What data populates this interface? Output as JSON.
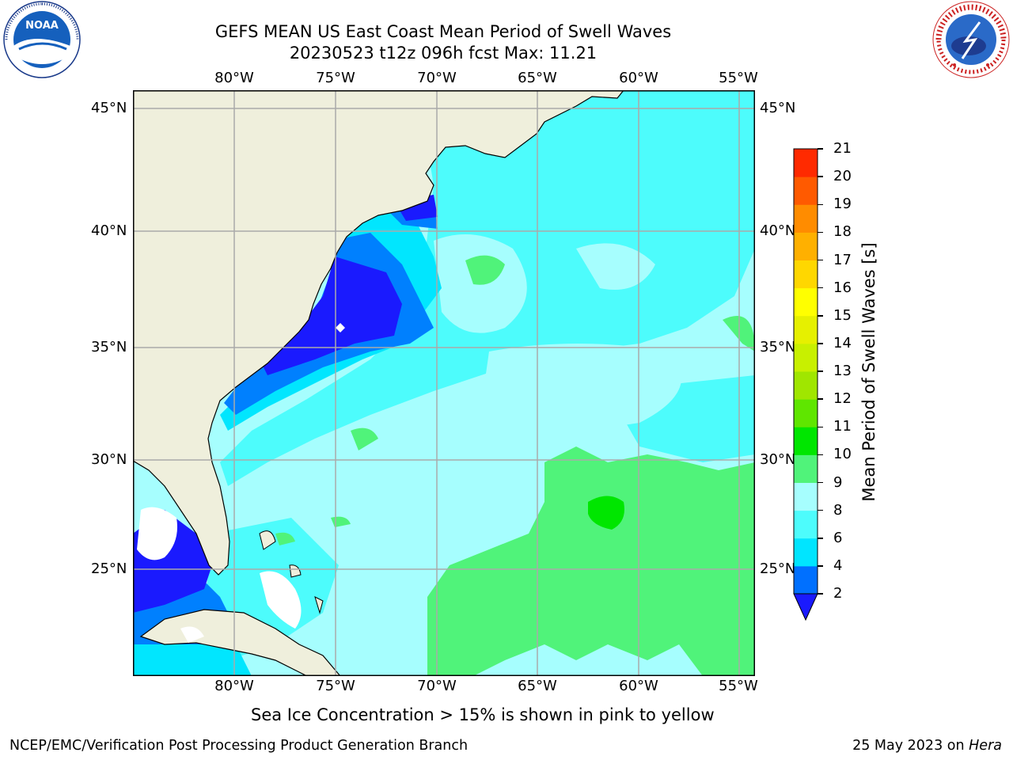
{
  "header": {
    "title_line1": "GEFS MEAN US East Coast Mean Period of Swell Waves",
    "title_line2": "20230523 t12z 096h fcst   Max: 11.21"
  },
  "logos": {
    "left": {
      "icon": "noaa-logo",
      "text": "NOAA",
      "ring_text": "NATIONAL OCEANIC AND ATMOSPHERIC ADMINISTRATION · U.S. DEPARTMENT OF COMMERCE"
    },
    "right": {
      "icon": "nws-logo",
      "ring_text": "NATIONAL WEATHER SERVICE"
    }
  },
  "map": {
    "lon_labels": [
      "80°W",
      "75°W",
      "70°W",
      "65°W",
      "60°W",
      "55°W"
    ],
    "lat_labels": [
      "45°N",
      "40°N",
      "35°N",
      "30°N",
      "25°N"
    ],
    "colors": {
      "land": "#efefdc",
      "ocean_8_9": "#a6fefe",
      "ocean_6_8": "#4dfcfc",
      "ocean_4_6": "#01e6fe",
      "ocean_2_4": "#0080fe",
      "ocean_lt_2": "#1a1afe",
      "ocean_9_10": "#50f37a",
      "ocean_10_11": "#00e600",
      "grid": "#aaaaaa"
    }
  },
  "colorbar": {
    "label": "Mean Period of Swell Waves [s]",
    "ticks": [
      "2",
      "4",
      "6",
      "8",
      "9",
      "10",
      "11",
      "12",
      "13",
      "14",
      "15",
      "16",
      "17",
      "18",
      "19",
      "20",
      "21"
    ],
    "colors": [
      "#0070ff",
      "#00e5ff",
      "#4dfcfc",
      "#a6fefe",
      "#50f37a",
      "#00e600",
      "#5fe600",
      "#a0e600",
      "#c8f000",
      "#e6f000",
      "#ffff00",
      "#ffd700",
      "#ffb000",
      "#ff8c00",
      "#ff5a00",
      "#ff2a00"
    ],
    "extend_color": "#1a1afe"
  },
  "subtitle": "Sea Ice Concentration > 15% is shown in pink to yellow",
  "footer": {
    "left": "NCEP/EMC/Verification Post Processing Product Generation Branch",
    "right_date": "25 May 2023 on ",
    "right_machine": "Hera"
  }
}
